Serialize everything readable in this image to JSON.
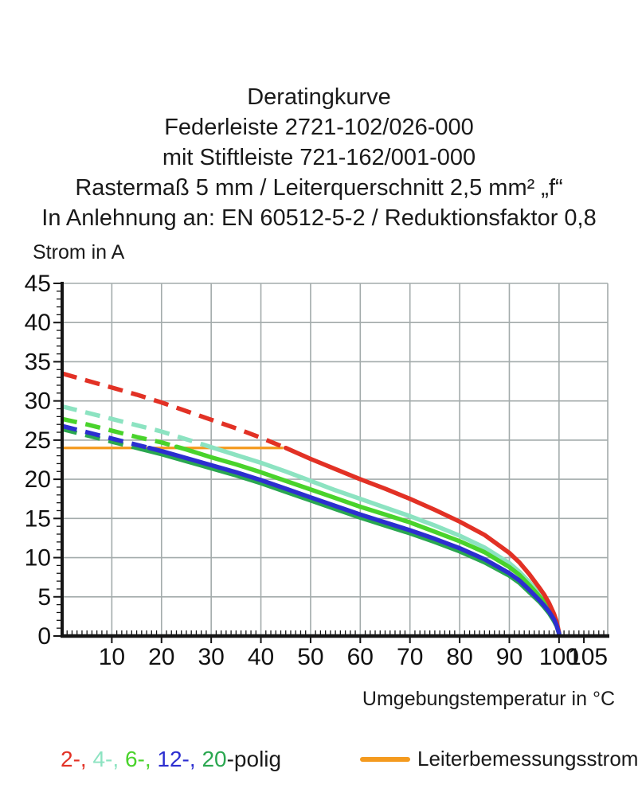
{
  "title": {
    "lines": [
      "Deratingkurve",
      "Federleiste 2721-102/026-000",
      "mit Stiftleiste 721-162/001-000",
      "Rastermaß 5 mm / Leiterquerschnitt 2,5 mm² „f“",
      "In Anlehnung an: EN 60512-5-2 / Reduktionsfaktor 0,8"
    ]
  },
  "axis_titles": {
    "y": "Strom in A",
    "x": "Umgebungstemperatur in °C"
  },
  "legend": {
    "poles_parts": [
      {
        "text": "2-, ",
        "color": "#e23125"
      },
      {
        "text": "4-, ",
        "color": "#8ce3c1"
      },
      {
        "text": "6-, ",
        "color": "#49d32b"
      },
      {
        "text": "12-, ",
        "color": "#2c2ed0"
      },
      {
        "text": "20",
        "color": "#2aa750"
      },
      {
        "text": "-polig",
        "color": "#1a1a1a"
      }
    ],
    "rated_current_label": "Leiterbemessungsstrom"
  },
  "colors": {
    "red": "#e23125",
    "mint": "#8ce3c1",
    "green": "#49d32b",
    "blue": "#2c2ed0",
    "green20": "#2aa750",
    "orange": "#f49a1e",
    "grid": "#a3abab",
    "axis": "#141414",
    "text": "#111111"
  },
  "chart_data": {
    "type": "line",
    "title": "Deratingkurve Federleiste 2721-102/026-000 mit Stiftleiste 721-162/001-000",
    "xlabel": "Umgebungstemperatur in °C",
    "ylabel": "Strom in A",
    "xlim": [
      0,
      110
    ],
    "ylim": [
      0,
      45
    ],
    "grid": true,
    "x_ticks": [
      10,
      20,
      30,
      40,
      50,
      60,
      70,
      80,
      90,
      100,
      105
    ],
    "y_ticks": [
      0,
      5,
      10,
      15,
      20,
      25,
      30,
      35,
      40,
      45
    ],
    "rated_current_line": {
      "label": "Leiterbemessungsstrom",
      "value_A": 24,
      "x_start": 0,
      "x_end": 44.5,
      "color": "#f49a1e"
    },
    "x": [
      0,
      5,
      10,
      15,
      20,
      25,
      30,
      35,
      40,
      45,
      50,
      55,
      60,
      65,
      70,
      75,
      80,
      85,
      90,
      92,
      94,
      96,
      97,
      98,
      99,
      99.5,
      100
    ],
    "series": [
      {
        "name": "2-polig",
        "color": "#e23125",
        "dash_until_T": 45,
        "values": [
          33.5,
          32.6,
          31.7,
          30.8,
          29.8,
          28.7,
          27.6,
          26.5,
          25.3,
          24.0,
          22.6,
          21.3,
          20.0,
          18.8,
          17.5,
          16.1,
          14.6,
          12.9,
          10.6,
          9.4,
          7.9,
          6.2,
          5.3,
          4.2,
          2.8,
          1.9,
          0.4
        ]
      },
      {
        "name": "4-polig",
        "color": "#8ce3c1",
        "dash_until_T": 30.5,
        "values": [
          29.3,
          28.5,
          27.7,
          26.9,
          26.1,
          25.1,
          24.1,
          23.1,
          22.1,
          21.0,
          19.8,
          18.6,
          17.5,
          16.4,
          15.3,
          14.1,
          12.8,
          11.3,
          9.3,
          8.2,
          6.9,
          5.4,
          4.6,
          3.7,
          2.5,
          1.7,
          0.4
        ]
      },
      {
        "name": "6-polig",
        "color": "#49d32b",
        "dash_until_T": 23,
        "values": [
          27.7,
          27.0,
          26.2,
          25.4,
          24.7,
          23.8,
          22.8,
          21.9,
          20.9,
          19.8,
          18.7,
          17.6,
          16.5,
          15.5,
          14.5,
          13.3,
          12.1,
          10.7,
          8.8,
          7.8,
          6.5,
          5.1,
          4.4,
          3.5,
          2.3,
          1.6,
          0.3
        ]
      },
      {
        "name": "12-polig",
        "color": "#2c2ed0",
        "dash_until_T": 17.5,
        "values": [
          26.8,
          26.0,
          25.2,
          24.4,
          23.6,
          22.7,
          21.8,
          20.9,
          19.9,
          18.8,
          17.7,
          16.6,
          15.5,
          14.5,
          13.5,
          12.4,
          11.2,
          9.8,
          8.0,
          7.1,
          5.9,
          4.6,
          3.9,
          3.1,
          2.1,
          1.4,
          0.3
        ]
      },
      {
        "name": "20-polig",
        "color": "#2aa750",
        "dash_until_T": 16,
        "values": [
          26.4,
          25.6,
          24.8,
          24.0,
          23.2,
          22.3,
          21.4,
          20.5,
          19.5,
          18.4,
          17.3,
          16.2,
          15.1,
          14.1,
          13.1,
          12.0,
          10.8,
          9.4,
          7.7,
          6.8,
          5.6,
          4.4,
          3.7,
          2.9,
          1.9,
          1.3,
          0.3
        ]
      }
    ],
    "draw_order": [
      "4-polig",
      "6-polig",
      "2-polig",
      "20-polig",
      "12-polig"
    ],
    "legend_position": "bottom"
  }
}
